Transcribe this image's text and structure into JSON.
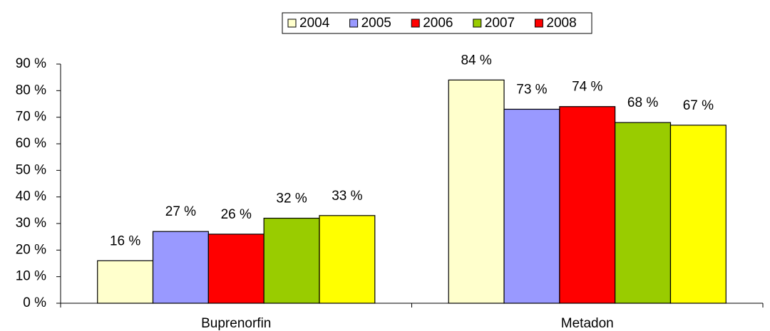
{
  "chart_data": {
    "type": "bar",
    "categories": [
      "Buprenorfin",
      "Metadon"
    ],
    "series": [
      {
        "name": "2004",
        "color": "#FFFFCC",
        "values": [
          16,
          84
        ],
        "value_labels": [
          "16 %",
          "84 %"
        ]
      },
      {
        "name": "2005",
        "color": "#9999FF",
        "values": [
          27,
          73
        ],
        "value_labels": [
          "27 %",
          "73 %"
        ]
      },
      {
        "name": "2006",
        "color": "#FF0000",
        "values": [
          26,
          74
        ],
        "value_labels": [
          "26 %",
          "74 %"
        ]
      },
      {
        "name": "2007",
        "color": "#99CC00",
        "values": [
          32,
          68
        ],
        "value_labels": [
          "32 %",
          "68 %"
        ]
      },
      {
        "name": "2008",
        "color": "#FFFF00",
        "legend_color": "#FF0000",
        "values": [
          33,
          67
        ],
        "value_labels": [
          "33 %",
          "67 %"
        ]
      }
    ],
    "ylim": [
      0,
      90
    ],
    "yticks": [
      {
        "value": 0,
        "label": "0 %"
      },
      {
        "value": 10,
        "label": "10 %"
      },
      {
        "value": 20,
        "label": "20 %"
      },
      {
        "value": 30,
        "label": "30 %"
      },
      {
        "value": 40,
        "label": "40 %"
      },
      {
        "value": 50,
        "label": "50 %"
      },
      {
        "value": 60,
        "label": "60 %"
      },
      {
        "value": 70,
        "label": "70 %"
      },
      {
        "value": 80,
        "label": "80 %"
      },
      {
        "value": 90,
        "label": "90 %"
      }
    ],
    "legend": "top",
    "grid": false
  }
}
